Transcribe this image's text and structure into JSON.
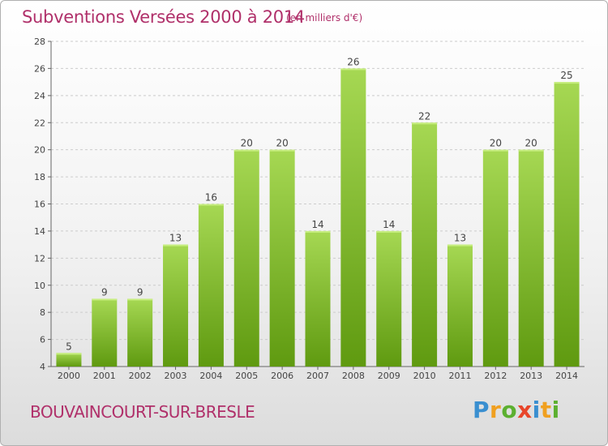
{
  "header": {
    "title": "Subventions Versées 2000 à 2014",
    "subtitle": "(en milliers d'€)"
  },
  "footer": {
    "commune": "BOUVAINCOURT-SUR-BRESLE",
    "logo_text": "Proxiti"
  },
  "colors": {
    "title": "#b0306a",
    "bar_light": "#9fd24a",
    "bar_dark": "#5f9a10",
    "grid": "#cccccc"
  },
  "chart_data": {
    "type": "bar",
    "title": "Subventions Versées 2000 à 2014",
    "categories": [
      "2000",
      "2001",
      "2002",
      "2003",
      "2004",
      "2005",
      "2006",
      "2007",
      "2008",
      "2009",
      "2010",
      "2011",
      "2012",
      "2013",
      "2014"
    ],
    "values": [
      5,
      9,
      9,
      13,
      16,
      20,
      20,
      14,
      26,
      14,
      22,
      13,
      20,
      20,
      25
    ],
    "ylim": [
      4,
      28
    ],
    "yticks": [
      4,
      6,
      8,
      10,
      12,
      14,
      16,
      18,
      20,
      22,
      24,
      26,
      28
    ],
    "grid": "horizontal dashed",
    "legend": "none"
  }
}
